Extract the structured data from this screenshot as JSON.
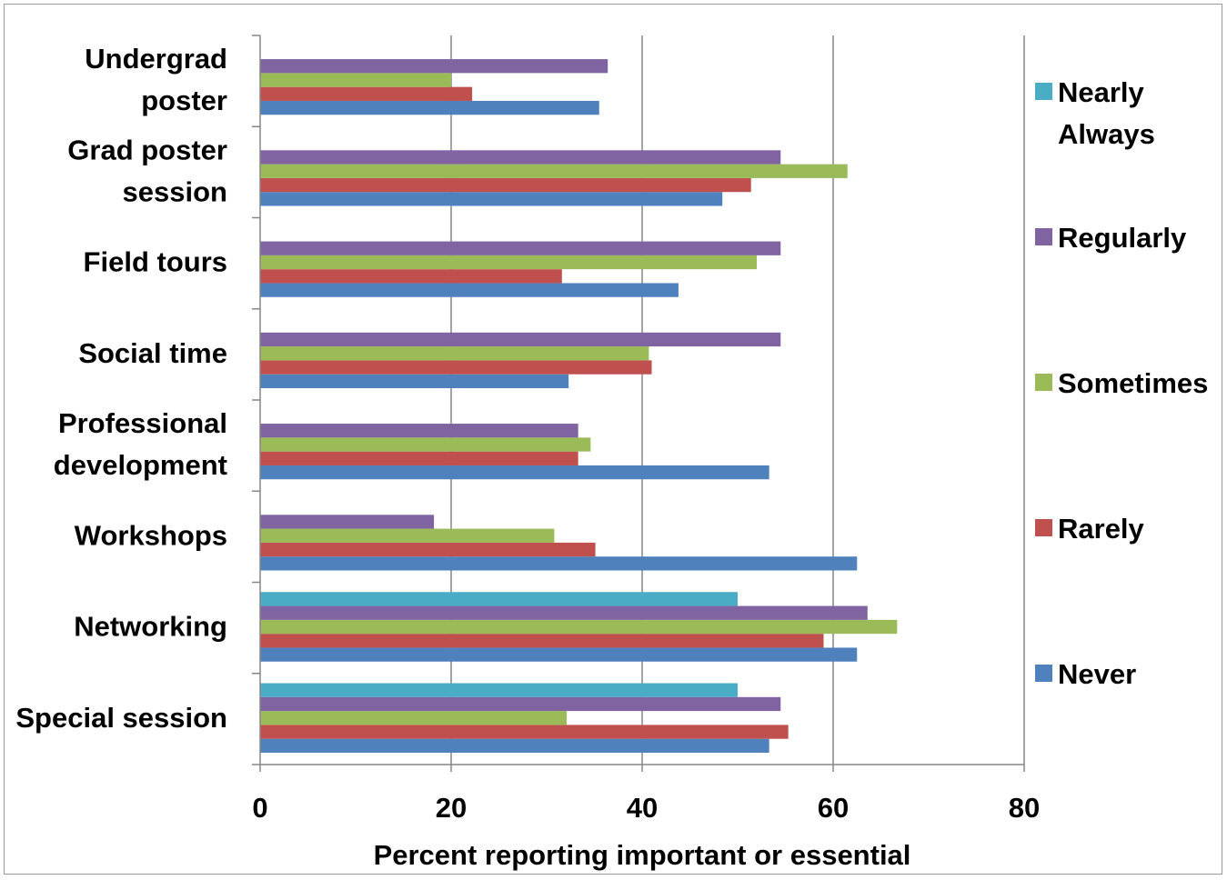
{
  "chart_data": {
    "type": "bar",
    "orientation": "horizontal",
    "title": "",
    "xlabel": "Percent reporting important or essential",
    "ylabel": "",
    "xlim": [
      0,
      80
    ],
    "xticks": [
      "0",
      "20",
      "40",
      "60",
      "80"
    ],
    "grid": true,
    "legend_position": "right",
    "categories": [
      [
        "Undergrad",
        "poster"
      ],
      [
        "Grad poster",
        "session"
      ],
      [
        "Field tours"
      ],
      [
        "Social time"
      ],
      [
        "Professional",
        "development"
      ],
      [
        "Workshops"
      ],
      [
        "Networking"
      ],
      [
        "Special session"
      ]
    ],
    "series": [
      {
        "name": "Never",
        "color": "#4f81bd",
        "values": [
          35.5,
          48.4,
          43.8,
          32.3,
          53.3,
          62.5,
          62.5,
          53.3
        ]
      },
      {
        "name": "Rarely",
        "color": "#c0504d",
        "values": [
          22.2,
          51.4,
          31.6,
          41.0,
          33.3,
          35.1,
          59.0,
          55.3
        ]
      },
      {
        "name": "Sometimes",
        "color": "#9bbb59",
        "values": [
          20.0,
          61.5,
          52.0,
          40.7,
          34.6,
          30.8,
          66.7,
          32.1
        ]
      },
      {
        "name": "Regularly",
        "color": "#8064a2",
        "values": [
          36.4,
          54.5,
          54.5,
          54.5,
          33.3,
          18.2,
          63.6,
          54.5
        ]
      },
      {
        "name": "Nearly Always",
        "color": "#4bacc6",
        "values": [
          null,
          null,
          null,
          null,
          null,
          null,
          50.0,
          50.0
        ]
      }
    ],
    "legend_order": [
      [
        "Nearly",
        "Always"
      ],
      [
        "Regularly"
      ],
      [
        "Sometimes"
      ],
      [
        "Rarely"
      ],
      [
        "Never"
      ]
    ]
  }
}
